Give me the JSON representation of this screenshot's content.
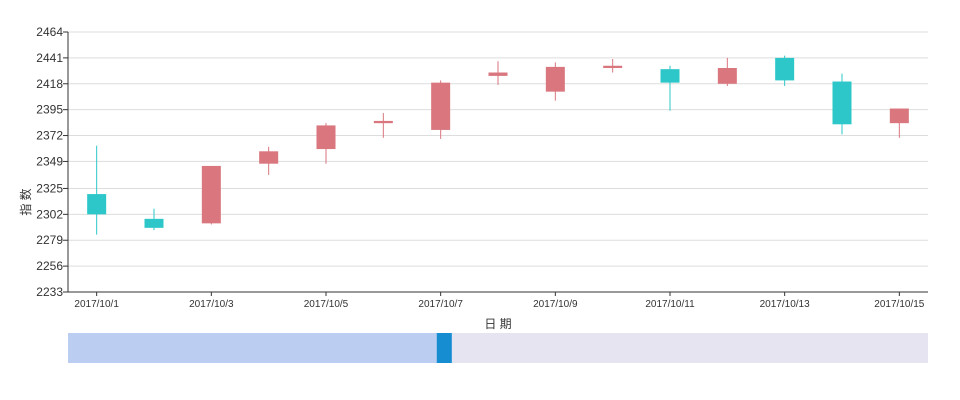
{
  "chart_data": {
    "type": "candlestick",
    "xlabel": "日 期",
    "ylabel": "指 数",
    "ylim": [
      2233,
      2464
    ],
    "yticks": [
      "2233",
      "2256",
      "2279",
      "2302",
      "2325",
      "2349",
      "2372",
      "2395",
      "2418",
      "2441",
      "2464"
    ],
    "xtick_labels": [
      "2017/10/1",
      "2017/10/3",
      "2017/10/5",
      "2017/10/7",
      "2017/10/9",
      "2017/10/11",
      "2017/10/13",
      "2017/10/15"
    ],
    "grid": true,
    "colors": {
      "up": "#d9767e",
      "down": "#2ec7c9",
      "axis": "#333333",
      "grid": "#dddddd",
      "zoom_track": "#e6e4f0",
      "zoom_selected": "#bccdf2",
      "zoom_handle": "#168dd1"
    },
    "candles": [
      {
        "date": "2017/10/1",
        "open": 2320,
        "close": 2302,
        "low": 2284,
        "high": 2363
      },
      {
        "date": "2017/10/2",
        "open": 2298,
        "close": 2290,
        "low": 2288,
        "high": 2307
      },
      {
        "date": "2017/10/3",
        "open": 2294,
        "close": 2345,
        "low": 2293,
        "high": 2345
      },
      {
        "date": "2017/10/4",
        "open": 2347,
        "close": 2358,
        "low": 2337,
        "high": 2362
      },
      {
        "date": "2017/10/5",
        "open": 2360,
        "close": 2381,
        "low": 2347,
        "high": 2383
      },
      {
        "date": "2017/10/6",
        "open": 2383,
        "close": 2385,
        "low": 2370,
        "high": 2392
      },
      {
        "date": "2017/10/7",
        "open": 2377,
        "close": 2419,
        "low": 2369,
        "high": 2421
      },
      {
        "date": "2017/10/8",
        "open": 2425,
        "close": 2428,
        "low": 2417,
        "high": 2438
      },
      {
        "date": "2017/10/9",
        "open": 2411,
        "close": 2433,
        "low": 2403,
        "high": 2437
      },
      {
        "date": "2017/10/10",
        "open": 2432,
        "close": 2434,
        "low": 2428,
        "high": 2440
      },
      {
        "date": "2017/10/11",
        "open": 2431,
        "close": 2419,
        "low": 2394,
        "high": 2434
      },
      {
        "date": "2017/10/12",
        "open": 2418,
        "close": 2432,
        "low": 2416,
        "high": 2441
      },
      {
        "date": "2017/10/13",
        "open": 2441,
        "close": 2421,
        "low": 2416,
        "high": 2443
      },
      {
        "date": "2017/10/14",
        "open": 2420,
        "close": 2382,
        "low": 2373,
        "high": 2427
      },
      {
        "date": "2017/10/15",
        "open": 2383,
        "close": 2396,
        "low": 2370,
        "high": 2396
      }
    ]
  },
  "zoom_slider": {
    "start": 0,
    "end": 0.43
  }
}
